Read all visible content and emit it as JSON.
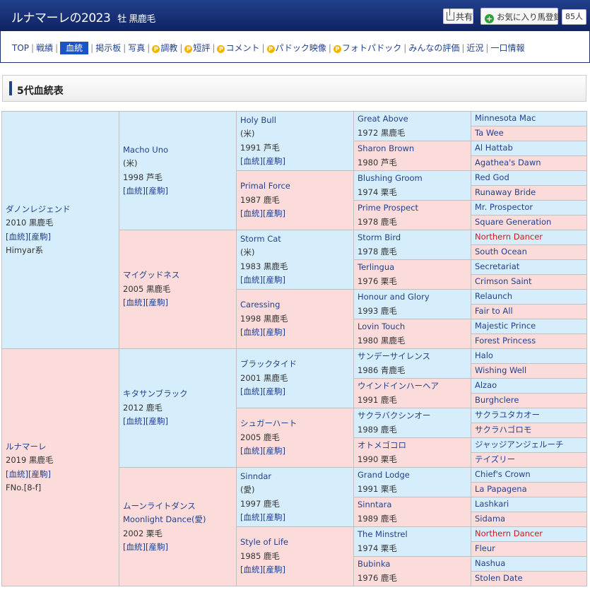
{
  "header": {
    "title": "ルナマーレの2023",
    "subtitle": "牡 黒鹿毛",
    "share_label": "共有",
    "fav_label": "お気に入り馬登録",
    "fav_count": "85人"
  },
  "nav": {
    "items": [
      "TOP",
      "戦績",
      "血統",
      "掲示板",
      "写真",
      "調教",
      "短評",
      "コメント",
      "パドック映像",
      "フォトパドック",
      "みんなの評価",
      "近況",
      "一口情報"
    ]
  },
  "section_title": "5代血統表",
  "colors": {
    "male_bg": "#d6eefb",
    "female_bg": "#fbdcda",
    "link": "#23408c",
    "highlight": "#d4161b",
    "header": "#132a6e"
  },
  "pedigree": {
    "g1": [
      {
        "name": "ダノンレジェンド",
        "year": "2010 黒鹿毛",
        "link": "[血統][産駒]",
        "note": "Himyar系"
      },
      {
        "name": "ルナマーレ",
        "year": "2019 黒鹿毛",
        "link": "[血統][産駒]",
        "note": "FNo.[8-f]"
      }
    ],
    "g2": [
      {
        "name": "Macho Uno",
        "country": "(米)",
        "year": "1998 芦毛",
        "link": "[血統][産駒]"
      },
      {
        "name": "マイグッドネス",
        "year": "2005 黒鹿毛",
        "link": "[血統][産駒]"
      },
      {
        "name": "キタサンブラック",
        "year": "2012 鹿毛",
        "link": "[血統][産駒]"
      },
      {
        "name": "ムーンライトダンス",
        "alt": "Moonlight Dance(愛)",
        "year": "2002 栗毛",
        "link": "[血統][産駒]"
      }
    ],
    "g3": [
      {
        "name": "Holy Bull",
        "country": "(米)",
        "year": "1991 芦毛",
        "link": "[血統][産駒]"
      },
      {
        "name": "Primal Force",
        "year": "1987 鹿毛",
        "link": "[血統][産駒]"
      },
      {
        "name": "Storm Cat",
        "country": "(米)",
        "year": "1983 黒鹿毛",
        "link": "[血統][産駒]"
      },
      {
        "name": "Caressing",
        "year": "1998 黒鹿毛",
        "link": "[血統][産駒]"
      },
      {
        "name": "ブラックタイド",
        "year": "2001 黒鹿毛",
        "link": "[血統][産駒]"
      },
      {
        "name": "シュガーハート",
        "year": "2005 鹿毛",
        "link": "[血統][産駒]"
      },
      {
        "name": "Sinndar",
        "country": "(愛)",
        "year": "1997 鹿毛",
        "link": "[血統][産駒]"
      },
      {
        "name": "Style of Life",
        "year": "1985 鹿毛",
        "link": "[血統][産駒]"
      }
    ],
    "g4": [
      {
        "name": "Great Above",
        "year": "1972 黒鹿毛"
      },
      {
        "name": "Sharon Brown",
        "year": "1980 芦毛"
      },
      {
        "name": "Blushing Groom",
        "year": "1974 栗毛"
      },
      {
        "name": "Prime Prospect",
        "year": "1978 鹿毛"
      },
      {
        "name": "Storm Bird",
        "year": "1978 鹿毛"
      },
      {
        "name": "Terlingua",
        "year": "1976 栗毛"
      },
      {
        "name": "Honour and Glory",
        "year": "1993 鹿毛"
      },
      {
        "name": "Lovin Touch",
        "year": "1980 黒鹿毛"
      },
      {
        "name": "サンデーサイレンス",
        "year": "1986 青鹿毛"
      },
      {
        "name": "ウインドインハーヘア",
        "year": "1991 鹿毛"
      },
      {
        "name": "サクラバクシンオー",
        "year": "1989 鹿毛"
      },
      {
        "name": "オトメゴコロ",
        "year": "1990 栗毛"
      },
      {
        "name": "Grand Lodge",
        "year": "1991 栗毛"
      },
      {
        "name": "Sinntara",
        "year": "1989 鹿毛"
      },
      {
        "name": "The Minstrel",
        "year": "1974 栗毛"
      },
      {
        "name": "Bubinka",
        "year": "1976 鹿毛"
      }
    ],
    "g5": [
      {
        "name": "Minnesota Mac"
      },
      {
        "name": "Ta Wee"
      },
      {
        "name": "Al Hattab"
      },
      {
        "name": "Agathea's Dawn"
      },
      {
        "name": "Red God"
      },
      {
        "name": "Runaway Bride"
      },
      {
        "name": "Mr. Prospector"
      },
      {
        "name": "Square Generation"
      },
      {
        "name": "Northern Dancer",
        "highlight": true
      },
      {
        "name": "South Ocean"
      },
      {
        "name": "Secretariat"
      },
      {
        "name": "Crimson Saint"
      },
      {
        "name": "Relaunch"
      },
      {
        "name": "Fair to All"
      },
      {
        "name": "Majestic Prince"
      },
      {
        "name": "Forest Princess"
      },
      {
        "name": "Halo"
      },
      {
        "name": "Wishing Well"
      },
      {
        "name": "Alzao"
      },
      {
        "name": "Burghclere"
      },
      {
        "name": "サクラユタカオー"
      },
      {
        "name": "サクラハゴロモ"
      },
      {
        "name": "ジャッジアンジェルーチ"
      },
      {
        "name": "テイズリー"
      },
      {
        "name": "Chief's Crown"
      },
      {
        "name": "La Papagena"
      },
      {
        "name": "Lashkari"
      },
      {
        "name": "Sidama"
      },
      {
        "name": "Northern Dancer",
        "highlight": true
      },
      {
        "name": "Fleur"
      },
      {
        "name": "Nashua"
      },
      {
        "name": "Stolen Date"
      }
    ]
  }
}
